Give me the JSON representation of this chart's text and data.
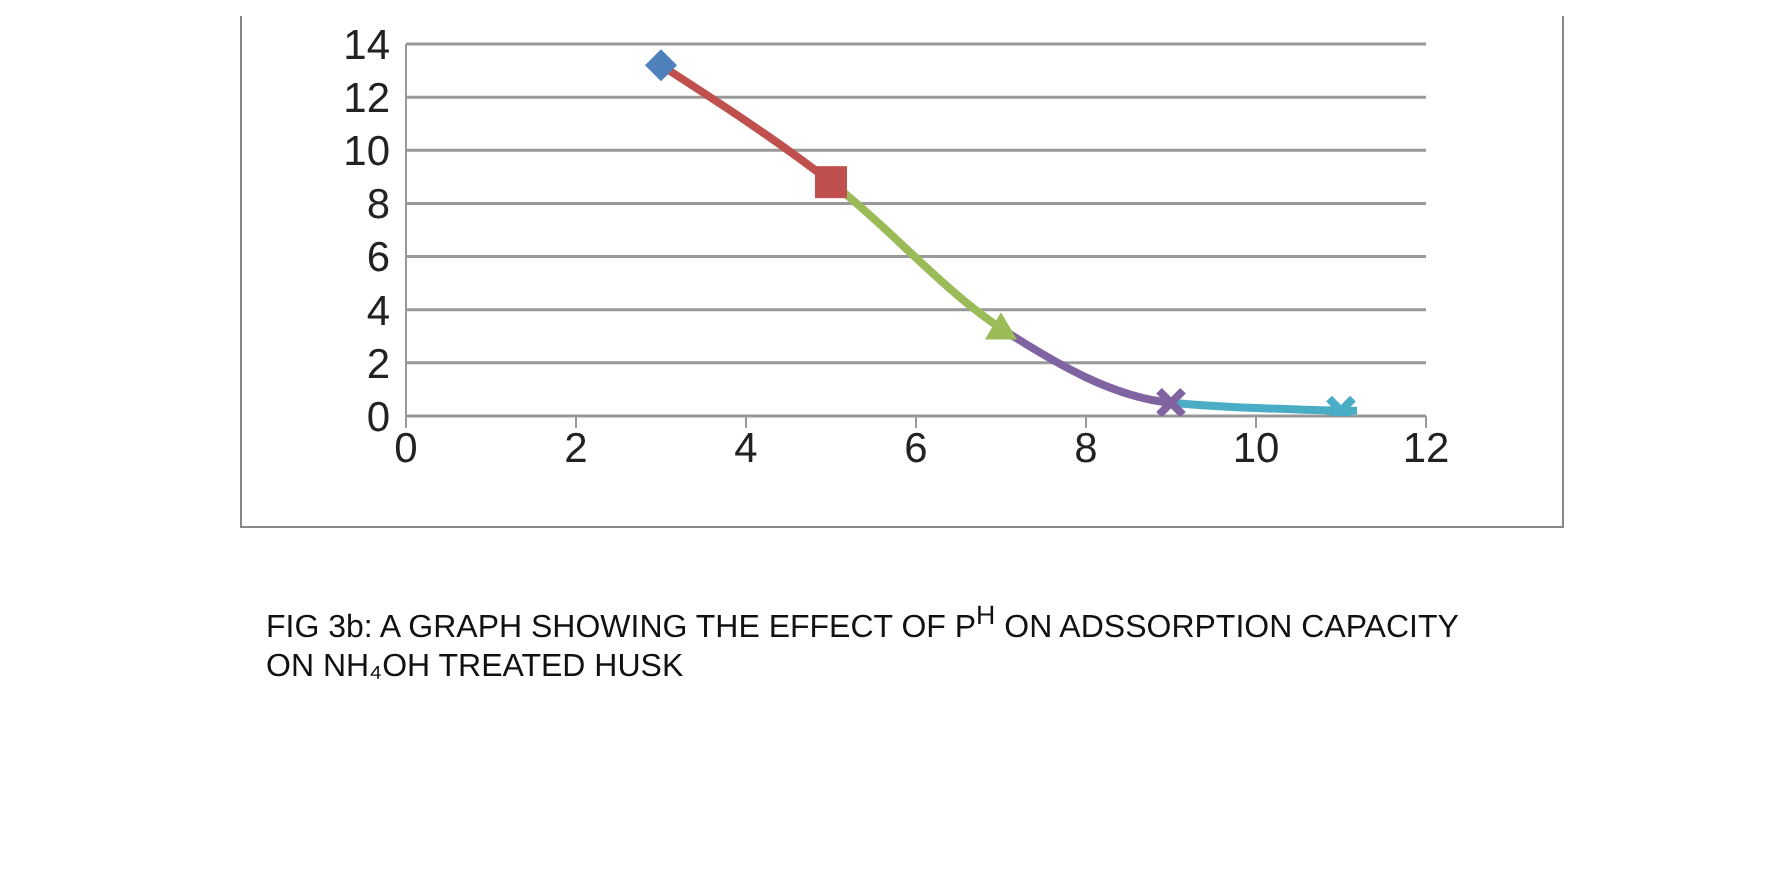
{
  "chart_data": {
    "type": "line",
    "annotations": [
      "FIG 3b: A GRAPH SHOWING THE EFFECT OF P$^{H}$ ON ADSSORPTION CAPACITY ON NH₄OH TREATED HUSK"
    ],
    "x": [
      3,
      5,
      7,
      9,
      11
    ],
    "series": [
      {
        "values": [
          13.2,
          8.8,
          3.3,
          0.5,
          0.2
        ],
        "colors": [
          "#4f81bd",
          "#c0504d",
          "#9bbb59",
          "#8064a2",
          "#4bacc6"
        ],
        "marker": [
          "diamond",
          "square",
          "triangle",
          "cross",
          "star"
        ]
      }
    ],
    "xlim": [
      0,
      12
    ],
    "xticks": [
      0,
      2,
      4,
      6,
      8,
      10,
      12
    ],
    "ylim": [
      0,
      14
    ],
    "yticks": [
      0,
      2,
      4,
      6,
      8,
      10,
      12,
      14
    ],
    "grid": "y"
  }
}
